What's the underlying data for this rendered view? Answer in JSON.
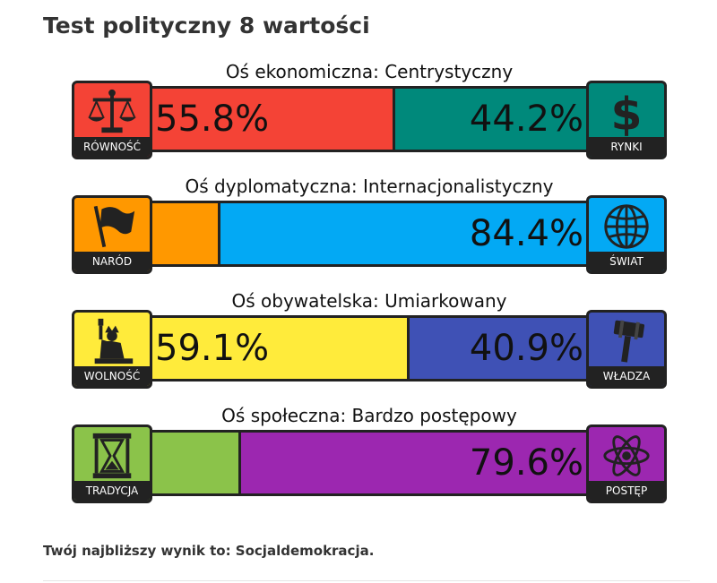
{
  "page": {
    "title": "Test polityczny 8 wartości",
    "result_text": "Twój najbliższy wynik to: Socjaldemokracja."
  },
  "axes": [
    {
      "label": "Oś ekonomiczna: Centrystyczny",
      "left": {
        "caption": "RÓWNOŚĆ",
        "icon": "scales-icon",
        "color": "#f44336",
        "percent": 55.8,
        "text": "55.8%"
      },
      "right": {
        "caption": "RYNKI",
        "icon": "dollar-icon",
        "color": "#00897b",
        "percent": 44.2,
        "text": "44.2%"
      }
    },
    {
      "label": "Oś dyplomatyczna: Internacjonalistyczny",
      "left": {
        "caption": "NARÓD",
        "icon": "flag-icon",
        "color": "#ff9800",
        "percent": 15.6,
        "text": ""
      },
      "right": {
        "caption": "ŚWIAT",
        "icon": "globe-icon",
        "color": "#03a9f4",
        "percent": 84.4,
        "text": "84.4%"
      }
    },
    {
      "label": "Oś obywatelska: Umiarkowany",
      "left": {
        "caption": "WOLNOŚĆ",
        "icon": "statue-of-liberty-icon",
        "color": "#ffeb3b",
        "percent": 59.1,
        "text": "59.1%"
      },
      "right": {
        "caption": "WŁADZA",
        "icon": "gavel-icon",
        "color": "#3f51b5",
        "percent": 40.9,
        "text": "40.9%"
      }
    },
    {
      "label": "Oś społeczna: Bardzo postępowy",
      "left": {
        "caption": "TRADYCJA",
        "icon": "hourglass-icon",
        "color": "#8bc34a",
        "percent": 20.4,
        "text": ""
      },
      "right": {
        "caption": "POSTĘP",
        "icon": "atom-icon",
        "color": "#9c27b0",
        "percent": 79.6,
        "text": "79.6%"
      }
    }
  ]
}
